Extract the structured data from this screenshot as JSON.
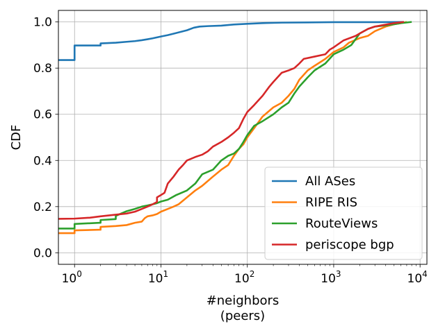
{
  "chart_data": {
    "type": "line",
    "xscale": "log",
    "xlim": [
      0.65,
      12000
    ],
    "ylim": [
      -0.05,
      1.05
    ],
    "grid": true,
    "legend_position": "lower-right",
    "xlabel_line1": "#neighbors",
    "xlabel_line2": "(peers)",
    "ylabel": "CDF",
    "xticks": [
      {
        "value": 1,
        "base": "10",
        "exp": "0"
      },
      {
        "value": 10,
        "base": "10",
        "exp": "1"
      },
      {
        "value": 100,
        "base": "10",
        "exp": "2"
      },
      {
        "value": 1000,
        "base": "10",
        "exp": "3"
      },
      {
        "value": 10000,
        "base": "10",
        "exp": "4"
      }
    ],
    "yticks": [
      {
        "value": 0.0,
        "label": "0.0"
      },
      {
        "value": 0.2,
        "label": "0.2"
      },
      {
        "value": 0.4,
        "label": "0.4"
      },
      {
        "value": 0.6,
        "label": "0.6"
      },
      {
        "value": 0.8,
        "label": "0.8"
      },
      {
        "value": 1.0,
        "label": "1.0"
      }
    ],
    "series": [
      {
        "name": "All ASes",
        "color": "#1f77b4",
        "points": [
          [
            0.65,
            0.835
          ],
          [
            1,
            0.835
          ],
          [
            1,
            0.898
          ],
          [
            2,
            0.898
          ],
          [
            2,
            0.907
          ],
          [
            3,
            0.91
          ],
          [
            4,
            0.914
          ],
          [
            5,
            0.917
          ],
          [
            6,
            0.921
          ],
          [
            7,
            0.925
          ],
          [
            8,
            0.929
          ],
          [
            10,
            0.937
          ],
          [
            12,
            0.943
          ],
          [
            15,
            0.952
          ],
          [
            20,
            0.964
          ],
          [
            24,
            0.975
          ],
          [
            28,
            0.98
          ],
          [
            35,
            0.982
          ],
          [
            50,
            0.984
          ],
          [
            70,
            0.989
          ],
          [
            100,
            0.992
          ],
          [
            150,
            0.995
          ],
          [
            250,
            0.997
          ],
          [
            500,
            0.998
          ],
          [
            1000,
            0.999
          ],
          [
            3000,
            0.999
          ],
          [
            6500,
            1.0
          ]
        ]
      },
      {
        "name": "RIPE RIS",
        "color": "#ff7f0e",
        "points": [
          [
            0.65,
            0.085
          ],
          [
            1,
            0.085
          ],
          [
            1,
            0.097
          ],
          [
            2,
            0.1
          ],
          [
            2,
            0.112
          ],
          [
            3,
            0.116
          ],
          [
            4,
            0.12
          ],
          [
            5,
            0.13
          ],
          [
            6,
            0.135
          ],
          [
            6.5,
            0.15
          ],
          [
            7,
            0.158
          ],
          [
            8,
            0.162
          ],
          [
            9,
            0.168
          ],
          [
            10,
            0.178
          ],
          [
            12,
            0.19
          ],
          [
            14,
            0.2
          ],
          [
            16,
            0.21
          ],
          [
            20,
            0.24
          ],
          [
            25,
            0.27
          ],
          [
            30,
            0.29
          ],
          [
            40,
            0.33
          ],
          [
            50,
            0.36
          ],
          [
            60,
            0.38
          ],
          [
            70,
            0.42
          ],
          [
            80,
            0.45
          ],
          [
            90,
            0.47
          ],
          [
            100,
            0.5
          ],
          [
            120,
            0.54
          ],
          [
            150,
            0.59
          ],
          [
            200,
            0.63
          ],
          [
            250,
            0.65
          ],
          [
            300,
            0.68
          ],
          [
            350,
            0.71
          ],
          [
            400,
            0.75
          ],
          [
            500,
            0.79
          ],
          [
            600,
            0.81
          ],
          [
            800,
            0.84
          ],
          [
            1000,
            0.87
          ],
          [
            1300,
            0.89
          ],
          [
            1500,
            0.91
          ],
          [
            2000,
            0.93
          ],
          [
            2500,
            0.94
          ],
          [
            3000,
            0.96
          ],
          [
            4000,
            0.98
          ],
          [
            5000,
            0.99
          ],
          [
            6000,
            0.995
          ],
          [
            7000,
            1.0
          ]
        ]
      },
      {
        "name": "RouteViews",
        "color": "#2ca02c",
        "points": [
          [
            0.65,
            0.105
          ],
          [
            1,
            0.105
          ],
          [
            1,
            0.125
          ],
          [
            2,
            0.13
          ],
          [
            2,
            0.142
          ],
          [
            3,
            0.146
          ],
          [
            3,
            0.16
          ],
          [
            4,
            0.18
          ],
          [
            5,
            0.19
          ],
          [
            6,
            0.2
          ],
          [
            7,
            0.205
          ],
          [
            8,
            0.21
          ],
          [
            9,
            0.215
          ],
          [
            10,
            0.222
          ],
          [
            12,
            0.23
          ],
          [
            15,
            0.25
          ],
          [
            20,
            0.27
          ],
          [
            25,
            0.3
          ],
          [
            30,
            0.34
          ],
          [
            40,
            0.36
          ],
          [
            50,
            0.4
          ],
          [
            60,
            0.42
          ],
          [
            70,
            0.43
          ],
          [
            80,
            0.45
          ],
          [
            90,
            0.48
          ],
          [
            100,
            0.51
          ],
          [
            120,
            0.55
          ],
          [
            150,
            0.57
          ],
          [
            200,
            0.6
          ],
          [
            250,
            0.63
          ],
          [
            300,
            0.65
          ],
          [
            350,
            0.69
          ],
          [
            400,
            0.72
          ],
          [
            500,
            0.76
          ],
          [
            600,
            0.79
          ],
          [
            800,
            0.82
          ],
          [
            1000,
            0.86
          ],
          [
            1300,
            0.88
          ],
          [
            1600,
            0.9
          ],
          [
            2000,
            0.95
          ],
          [
            2500,
            0.97
          ],
          [
            3000,
            0.98
          ],
          [
            4000,
            0.985
          ],
          [
            5000,
            0.99
          ],
          [
            6000,
            0.995
          ],
          [
            8000,
            1.0
          ]
        ]
      },
      {
        "name": "periscope bgp",
        "color": "#d62728",
        "points": [
          [
            0.65,
            0.147
          ],
          [
            1,
            0.148
          ],
          [
            1.5,
            0.152
          ],
          [
            2,
            0.158
          ],
          [
            3,
            0.165
          ],
          [
            4,
            0.17
          ],
          [
            5,
            0.178
          ],
          [
            6,
            0.19
          ],
          [
            7,
            0.2
          ],
          [
            8,
            0.21
          ],
          [
            9,
            0.22
          ],
          [
            9,
            0.24
          ],
          [
            10,
            0.25
          ],
          [
            11,
            0.26
          ],
          [
            12,
            0.3
          ],
          [
            14,
            0.33
          ],
          [
            16,
            0.36
          ],
          [
            18,
            0.38
          ],
          [
            20,
            0.4
          ],
          [
            25,
            0.415
          ],
          [
            30,
            0.425
          ],
          [
            35,
            0.44
          ],
          [
            40,
            0.46
          ],
          [
            50,
            0.48
          ],
          [
            60,
            0.5
          ],
          [
            70,
            0.52
          ],
          [
            80,
            0.54
          ],
          [
            90,
            0.58
          ],
          [
            100,
            0.61
          ],
          [
            120,
            0.64
          ],
          [
            150,
            0.68
          ],
          [
            180,
            0.72
          ],
          [
            200,
            0.74
          ],
          [
            250,
            0.78
          ],
          [
            300,
            0.79
          ],
          [
            350,
            0.8
          ],
          [
            400,
            0.82
          ],
          [
            450,
            0.84
          ],
          [
            600,
            0.85
          ],
          [
            800,
            0.86
          ],
          [
            900,
            0.88
          ],
          [
            1000,
            0.89
          ],
          [
            1300,
            0.92
          ],
          [
            1800,
            0.94
          ],
          [
            2000,
            0.95
          ],
          [
            2500,
            0.97
          ],
          [
            3000,
            0.98
          ],
          [
            5000,
            0.995
          ],
          [
            6500,
            1.0
          ]
        ]
      }
    ]
  }
}
